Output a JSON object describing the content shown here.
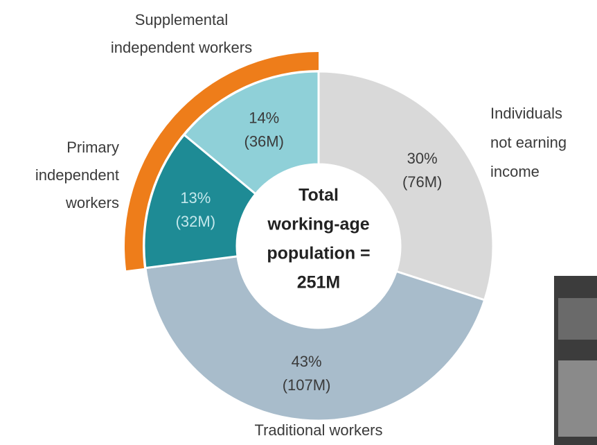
{
  "chart_data": {
    "type": "donut",
    "center_label": [
      "Total",
      "working-age",
      "population =",
      "251M"
    ],
    "categories": [
      [
        "Individuals",
        "not earning",
        "income"
      ],
      [
        "Traditional workers"
      ],
      [
        "Primary",
        "independent",
        "workers"
      ],
      [
        "Supplemental",
        "independent workers"
      ]
    ],
    "values": [
      30,
      43,
      13,
      14
    ],
    "value_labels": [
      "30%",
      "43%",
      "13%",
      "14%"
    ],
    "millions": [
      76,
      107,
      32,
      36
    ],
    "millions_labels": [
      "(76M)",
      "(107M)",
      "(32M)",
      "(36M)"
    ],
    "colors": [
      "#d9d9d9",
      "#a8bccb",
      "#1e8b95",
      "#8fd0d8"
    ],
    "highlighted": [
      false,
      false,
      true,
      true
    ],
    "highlight_color": "#ee7d1a"
  }
}
